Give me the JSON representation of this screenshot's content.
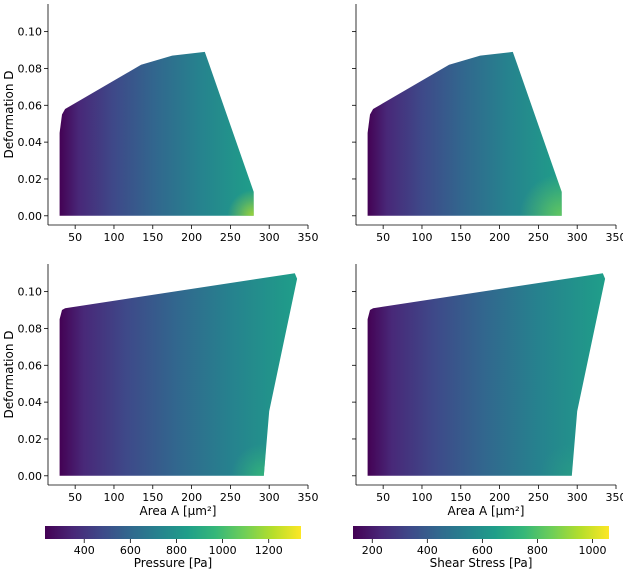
{
  "chart_data": [
    {
      "type": "heatmap",
      "panel": "top-left",
      "xlabel": "",
      "ylabel": "Deformation D",
      "xlim": [
        15,
        350
      ],
      "ylim": [
        -0.005,
        0.115
      ],
      "xticks": [
        50,
        100,
        150,
        200,
        250,
        300,
        350
      ],
      "yticks": [
        0.0,
        0.02,
        0.04,
        0.06,
        0.08,
        0.1
      ],
      "region_outline": [
        [
          30,
          0.0
        ],
        [
          30,
          0.045
        ],
        [
          33,
          0.055
        ],
        [
          37,
          0.058
        ],
        [
          135,
          0.082
        ],
        [
          175,
          0.087
        ],
        [
          217,
          0.089
        ],
        [
          222,
          0.083
        ],
        [
          280,
          0.013
        ],
        [
          280,
          0.0
        ]
      ],
      "color_field": "Pressure [Pa]",
      "colormap": "viridis"
    },
    {
      "type": "heatmap",
      "panel": "top-right",
      "xlabel": "",
      "ylabel": "",
      "xlim": [
        15,
        350
      ],
      "ylim": [
        -0.005,
        0.115
      ],
      "xticks": [
        50,
        100,
        150,
        200,
        250,
        300,
        350
      ],
      "yticks": [
        0.0,
        0.02,
        0.04,
        0.06,
        0.08,
        0.1
      ],
      "region_outline": [
        [
          30,
          0.0
        ],
        [
          30,
          0.045
        ],
        [
          33,
          0.055
        ],
        [
          37,
          0.058
        ],
        [
          135,
          0.082
        ],
        [
          175,
          0.087
        ],
        [
          217,
          0.089
        ],
        [
          222,
          0.083
        ],
        [
          280,
          0.013
        ],
        [
          280,
          0.0
        ]
      ],
      "color_field": "Shear Stress [Pa]",
      "colormap": "viridis"
    },
    {
      "type": "heatmap",
      "panel": "bottom-left",
      "xlabel": "Area A [µm²]",
      "ylabel": "Deformation D",
      "xlim": [
        15,
        350
      ],
      "ylim": [
        -0.005,
        0.115
      ],
      "xticks": [
        50,
        100,
        150,
        200,
        250,
        300,
        350
      ],
      "yticks": [
        0.0,
        0.02,
        0.04,
        0.06,
        0.08,
        0.1
      ],
      "region_outline": [
        [
          30,
          0.0
        ],
        [
          30,
          0.085
        ],
        [
          33,
          0.09
        ],
        [
          37,
          0.091
        ],
        [
          333,
          0.11
        ],
        [
          336,
          0.107
        ],
        [
          300,
          0.035
        ],
        [
          293,
          0.0
        ]
      ],
      "color_field": "Pressure [Pa]",
      "colormap": "viridis"
    },
    {
      "type": "heatmap",
      "panel": "bottom-right",
      "xlabel": "Area A [µm²]",
      "ylabel": "",
      "xlim": [
        15,
        350
      ],
      "ylim": [
        -0.005,
        0.115
      ],
      "xticks": [
        50,
        100,
        150,
        200,
        250,
        300,
        350
      ],
      "yticks": [
        0.0,
        0.02,
        0.04,
        0.06,
        0.08,
        0.1
      ],
      "region_outline": [
        [
          30,
          0.0
        ],
        [
          30,
          0.085
        ],
        [
          33,
          0.09
        ],
        [
          37,
          0.091
        ],
        [
          333,
          0.11
        ],
        [
          336,
          0.107
        ],
        [
          300,
          0.035
        ],
        [
          293,
          0.0
        ]
      ],
      "color_field": "Shear Stress [Pa]",
      "colormap": "viridis"
    }
  ],
  "colorbars": [
    {
      "label": "Pressure [Pa]",
      "range": [
        230,
        1340
      ],
      "ticks": [
        400,
        600,
        800,
        1000,
        1200
      ],
      "colormap": "viridis"
    },
    {
      "label": "Shear Stress [Pa]",
      "range": [
        130,
        1060
      ],
      "ticks": [
        200,
        400,
        600,
        800,
        1000
      ],
      "colormap": "viridis"
    }
  ],
  "colors": {
    "viridis": [
      "#440154",
      "#482878",
      "#3e4989",
      "#31688e",
      "#26828e",
      "#1f9e89",
      "#35b779",
      "#6ece58",
      "#b5de2b",
      "#fde725"
    ]
  }
}
